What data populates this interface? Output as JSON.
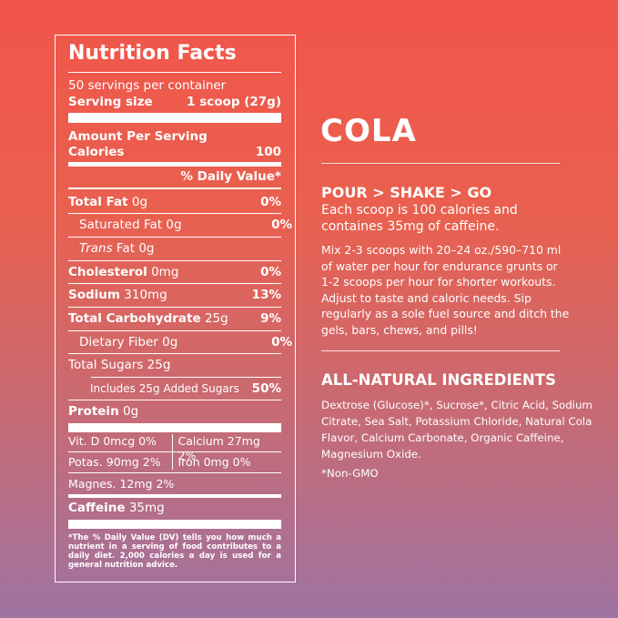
{
  "nutrition": {
    "title": "Nutrition Facts",
    "servings": "50 servings per container",
    "serving_size_label": "Serving size",
    "serving_size": "1 scoop (27g)",
    "amount_per_serving": "Amount Per Serving",
    "calories_label": "Calories",
    "calories": "100",
    "daily_value_header": "% Daily Value*",
    "rows": [
      {
        "label": "Total Fat",
        "amount": "0g",
        "dv": "0%"
      },
      {
        "label": "Saturated Fat",
        "amount": "0g",
        "dv": "0%"
      },
      {
        "label_italic": "Trans",
        "label": "Fat",
        "amount": "0g"
      },
      {
        "label": "Cholesterol",
        "amount": "0mg",
        "dv": "0%"
      },
      {
        "label": "Sodium",
        "amount": "310mg",
        "dv": "13%"
      },
      {
        "label": "Total Carbohydrate",
        "amount": "25g",
        "dv": "9%"
      },
      {
        "label": "Dietary Fiber",
        "amount": "0g",
        "dv": "0%"
      },
      {
        "label": "Total Sugars",
        "amount": "25g"
      },
      {
        "label": "Includes 25g Added Sugars",
        "dv": "50%"
      },
      {
        "label": "Protein",
        "amount": "0g"
      }
    ],
    "micros": [
      [
        "Vit. D 0mcg 0%",
        "Calcium 27mg 2%"
      ],
      [
        "Potas. 90mg 2%",
        "Iron 0mg 0%"
      ],
      [
        "Magnes. 12mg 2%"
      ]
    ],
    "caffeine_label": "Caffeine",
    "caffeine": "35mg",
    "footnote": "*The % Daily Value (DV) tells you how much a nutrient in a serving of food contributes to a daily diet. 2,000 calories a day is used for a general nutrition advice."
  },
  "product": {
    "name": "COLA",
    "tagline": "POUR > SHAKE > GO",
    "summary": "Each scoop is 100 calories and containes 35mg of caffeine.",
    "directions": "Mix 2-3 scoops with 20–24 oz./590–710 ml of water per hour for endurance grunts or 1-2 scoops per hour for shorter workouts. Adjust to taste and caloric needs. Sip regularly as a sole fuel source and ditch the gels, bars, chews, and pills!",
    "ingredients_title": "ALL-NATURAL INGREDIENTS",
    "ingredients": "Dextrose (Glucose)*, Sucrose*, Citric Acid, Sodium Citrate, Sea Salt, Potassium Chloride, Natural Cola Flavor, Calcium Carbonate, Organic Caffeine, Magnesium Oxide.",
    "non_gmo": "*Non-GMO"
  }
}
